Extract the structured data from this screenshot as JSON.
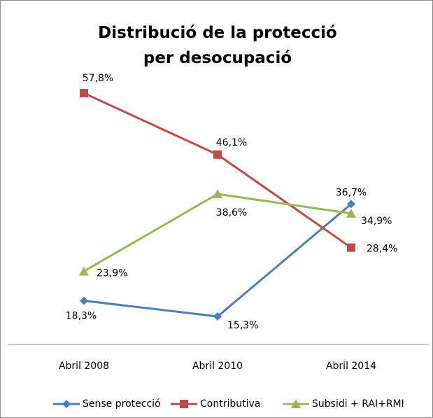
{
  "chart_data": {
    "type": "line",
    "title": "Distribució de la protecció per desocupació",
    "categories": [
      "Abril 2008",
      "Abril 2010",
      "Abril 2014"
    ],
    "series": [
      {
        "name": "Sense protecció",
        "color": "#4a7ebb",
        "marker": "diamond",
        "values": [
          18.3,
          15.3,
          36.7
        ],
        "value_labels": [
          "18,3%",
          "15,3%",
          "36,7%"
        ]
      },
      {
        "name": "Contributiva",
        "color": "#be4b48",
        "marker": "square",
        "values": [
          57.8,
          46.1,
          28.4
        ],
        "value_labels": [
          "57,8%",
          "46,1%",
          "28,4%"
        ]
      },
      {
        "name": "Subsidi + RAI+RMI",
        "color": "#98b954",
        "marker": "triangle",
        "values": [
          23.9,
          38.6,
          34.9
        ],
        "value_labels": [
          "23,9%",
          "38,6%",
          "34,9%"
        ]
      }
    ]
  }
}
